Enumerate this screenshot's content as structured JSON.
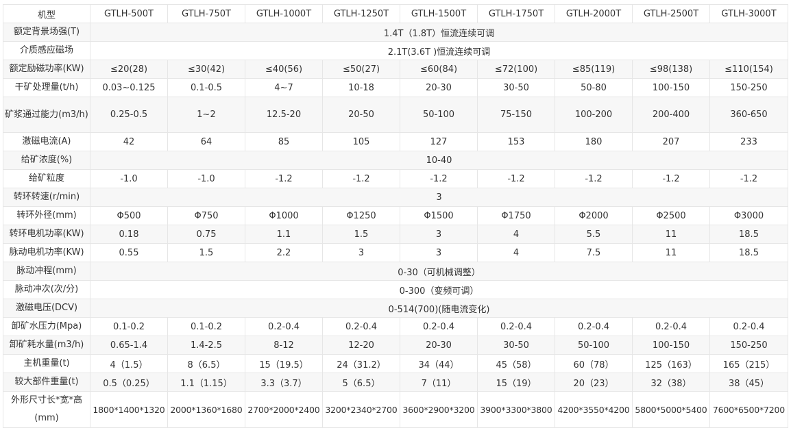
{
  "header": {
    "label": "机型",
    "models": [
      "GTLH-500T",
      "GTLH-750T",
      "GTLH-1000T",
      "GTLH-1250T",
      "GTLH-1500T",
      "GTLH-1750T",
      "GTLH-2000T",
      "GTLH-2500T",
      "GTLH-3000T"
    ]
  },
  "rows": [
    {
      "label": "额定背景场强(T)",
      "span": "1.4T（1.8T）恒流连续可调"
    },
    {
      "label": "介质感应磁场",
      "span": "2.1T(3.6T )恒流连续可调"
    },
    {
      "label": "额定励磁功率(KW)",
      "values": [
        "≤20(28)",
        "≤30(42)",
        "≤40(56)",
        "≤50(27)",
        "≤60(84)",
        "≤72(100)",
        "≤85(119)",
        "≤98(138)",
        "≤110(154)"
      ]
    },
    {
      "label": "干矿处理量(t/h)",
      "values": [
        "0.03~0.125",
        "0.1-0.5",
        "4~7",
        "10-18",
        "20-30",
        "30-50",
        "50-80",
        "100-150",
        "150-250"
      ]
    },
    {
      "label": "矿浆通过能力(m3/h)",
      "tall": true,
      "values": [
        "0.25-0.5",
        "1~2",
        "12.5-20",
        "20-50",
        "50-100",
        "75-150",
        "100-200",
        "200-400",
        "360-650"
      ]
    },
    {
      "label": "激磁电流(A)",
      "values": [
        "42",
        "64",
        "85",
        "105",
        "127",
        "153",
        "180",
        "207",
        "233"
      ]
    },
    {
      "label": "给矿浓度(%)",
      "span": "10-40"
    },
    {
      "label": "给矿粒度",
      "values": [
        "-1.0",
        "-1.0",
        "-1.2",
        "-1.2",
        "-1.2",
        "-1.2",
        "-1.2",
        "-1.2",
        "-1.2"
      ]
    },
    {
      "label": "转环转速(r/min)",
      "span": "3"
    },
    {
      "label": "转环外径(mm)",
      "values": [
        "Φ500",
        "Φ750",
        "Φ1000",
        "Φ1250",
        "Φ1500",
        "Φ1750",
        "Φ2000",
        "Φ2500",
        "Φ3000"
      ]
    },
    {
      "label": "转环电机功率(KW)",
      "values": [
        "0.18",
        "0.75",
        "1.1",
        "1.5",
        "3",
        "4",
        "5.5",
        "11",
        "18.5"
      ]
    },
    {
      "label": "脉动电机功率(KW)",
      "values": [
        "0.55",
        "1.5",
        "2.2",
        "3",
        "3",
        "4",
        "7.5",
        "11",
        "18.5"
      ]
    },
    {
      "label": "脉动冲程(mm)",
      "span": "0-30（可机械调整）"
    },
    {
      "label": "脉动冲次(次/分)",
      "span": "0-300（变频可调）"
    },
    {
      "label": "激磁电压(DCV)",
      "span": "0-514(700)(随电流变化)"
    },
    {
      "label": "卸矿水压力(Mpa)",
      "values": [
        "0.1-0.2",
        "0.1-0.2",
        "0.2-0.4",
        "0.2-0.4",
        "0.2-0.4",
        "0.2-0.4",
        "0.2-0.4",
        "0.2-0.4",
        "0.2-0.4"
      ]
    },
    {
      "label": "卸矿耗水量(m3/h)",
      "values": [
        "0.65-1.4",
        "1.4-2.5",
        "8-12",
        "12-20",
        "20-30",
        "30-50",
        "50-100",
        "100-150",
        "150-250"
      ]
    },
    {
      "label": "主机重量(t)",
      "values": [
        "4（1.5）",
        "8（6.5）",
        "15（19.5）",
        "24（31.2）",
        "34（44）",
        "45（58）",
        "60（78）",
        "125（163）",
        "165（215）"
      ]
    },
    {
      "label": "较大部件重量(t)",
      "values": [
        "0.5（0.25）",
        "1.1（1.15）",
        "3.3（3.7）",
        "5（6.5）",
        "7（11）",
        "15（19）",
        "20（23）",
        "32（38）",
        "38（45）"
      ]
    },
    {
      "label": "外形尺寸长*宽*高(mm)",
      "tall": true,
      "size": true,
      "values": [
        "1800*1400*1320",
        "2000*1360*1680",
        "2700*2000*2400",
        "3200*2340*2700",
        "3600*2900*3200",
        "3900*3300*3800",
        "4200*3550*4200",
        "5800*5000*5400",
        "7600*6500*7200"
      ]
    }
  ]
}
